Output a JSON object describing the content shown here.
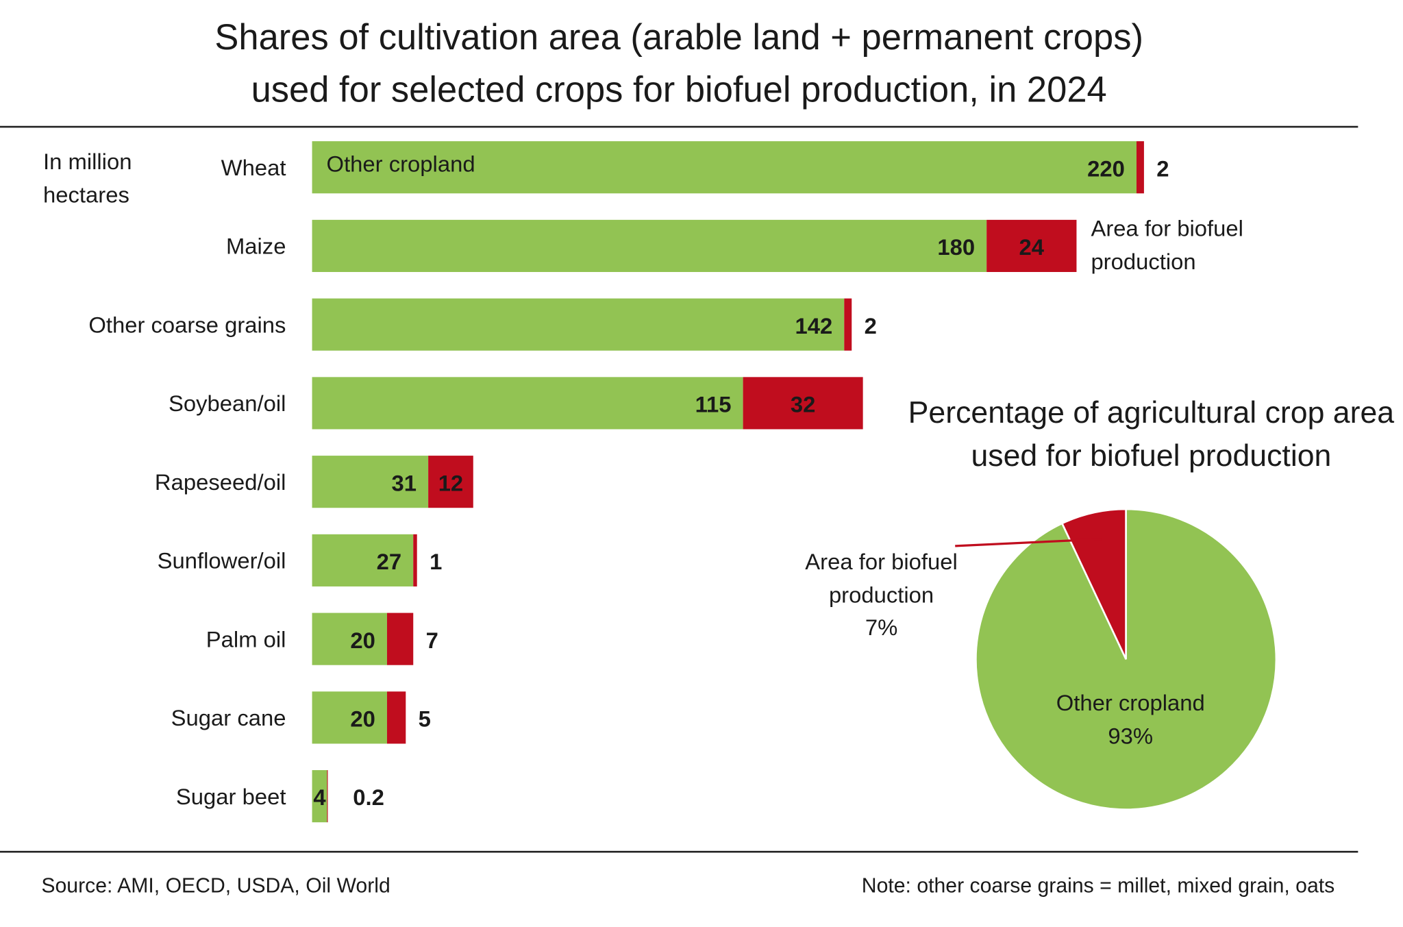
{
  "chart_data": [
    {
      "type": "stacked-barh",
      "title": "Shares of cultivation area (arable land + permanent crops) used for selected crops for biofuel production, in 2024",
      "unit": "In million hectares",
      "categories": [
        "Wheat",
        "Maize",
        "Other coarse grains",
        "Soybean/oil",
        "Rapeseed/oil",
        "Sunflower/oil",
        "Palm oil",
        "Sugar cane",
        "Sugar beet"
      ],
      "series": [
        {
          "name": "Other cropland",
          "color": "#92c353",
          "values": [
            220,
            180,
            142,
            115,
            31,
            27,
            20,
            20,
            4
          ]
        },
        {
          "name": "Area for biofuel production",
          "color": "#c00d1e",
          "values": [
            2,
            24,
            2,
            32,
            12,
            1,
            7,
            5,
            0.2
          ]
        }
      ],
      "source": "Source:  AMI, OECD,  USDA, Oil World",
      "note": "Note: other coarse grains = millet, mixed grain, oats"
    },
    {
      "type": "pie",
      "title": "Percentage of agricultural crop area used for biofuel production",
      "categories": [
        "Area for biofuel production",
        "Other cropland"
      ],
      "values": [
        7,
        93
      ],
      "value_labels": [
        "7%",
        "93%"
      ],
      "colors": [
        "#c00d1e",
        "#92c353"
      ]
    }
  ]
}
